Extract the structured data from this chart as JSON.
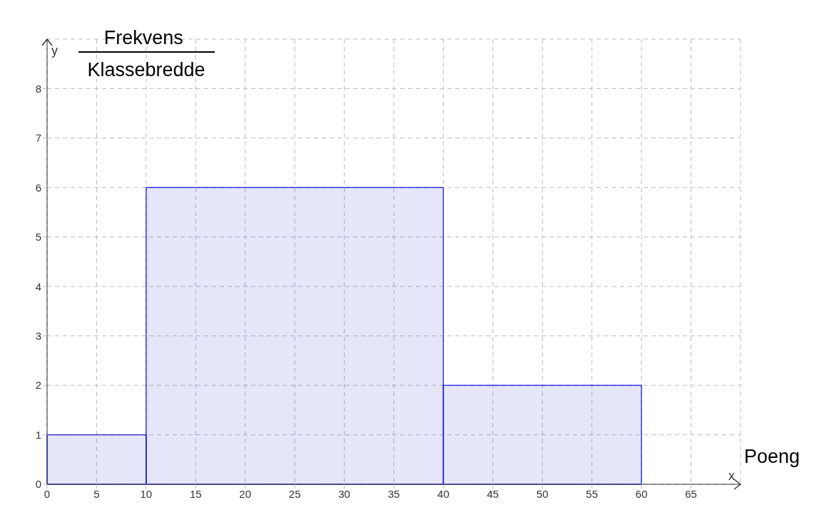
{
  "chart_data": {
    "type": "histogram",
    "xlabel": "Poeng",
    "ylabel": "Frekvens\nKlassebredde",
    "annotations": [
      "x",
      "y"
    ],
    "bins": [
      0,
      10,
      40,
      60
    ],
    "values": [
      1,
      6,
      2
    ],
    "color": "#e6e6fa",
    "xlim": [
      0,
      70
    ],
    "xticks": [
      0,
      5,
      10,
      15,
      20,
      25,
      30,
      35,
      40,
      45,
      50,
      55,
      60,
      65
    ],
    "ylim": [
      0,
      9
    ],
    "yticks": [
      0,
      1,
      2,
      3,
      4,
      5,
      6,
      7,
      8
    ],
    "grid": true
  }
}
